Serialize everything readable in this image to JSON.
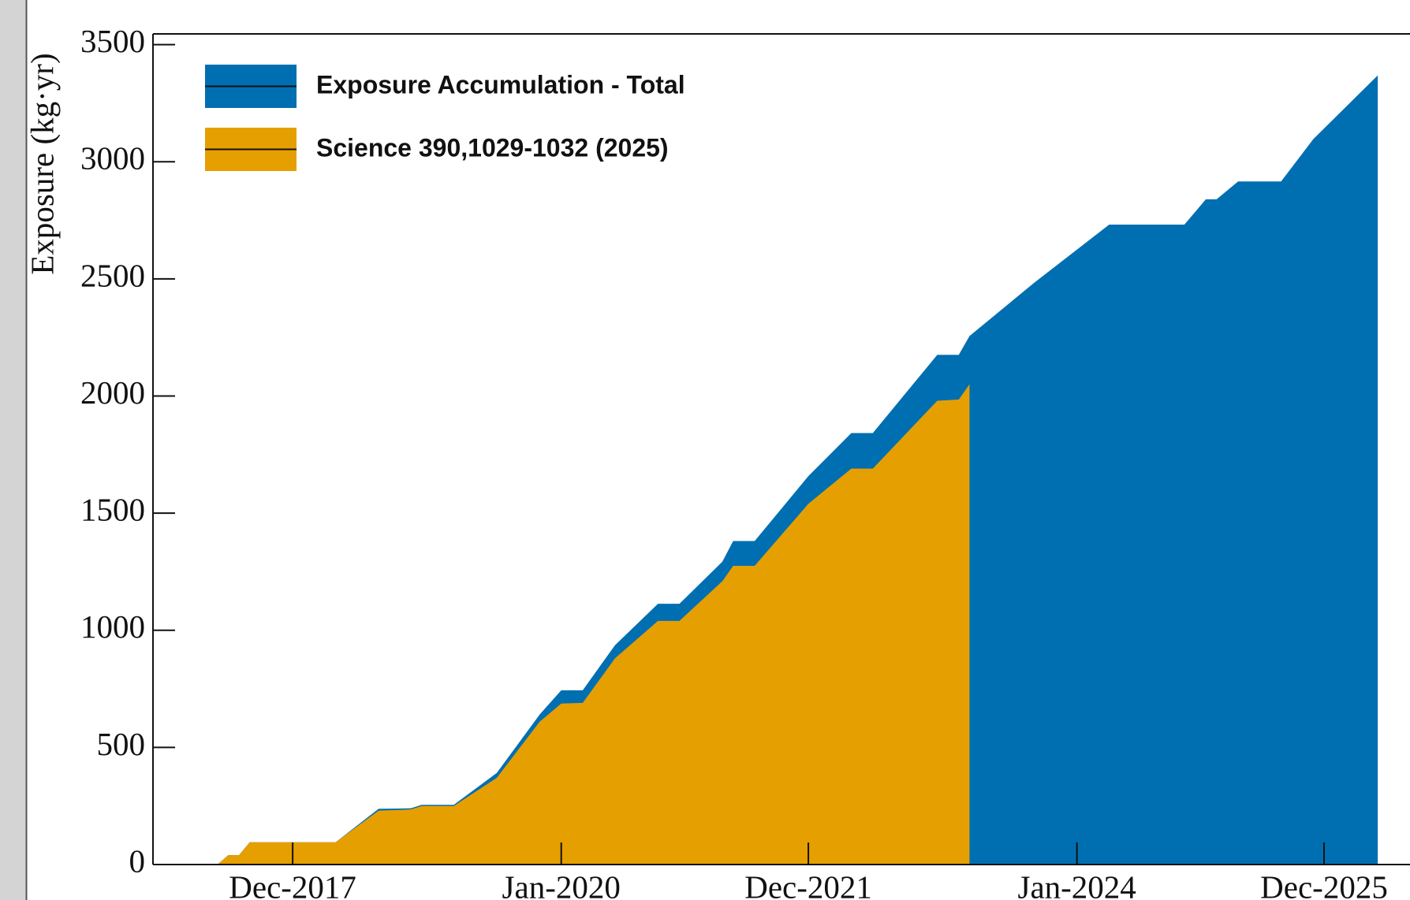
{
  "chart_data": {
    "type": "area",
    "ylabel": "Exposure (kg·yr)",
    "x": [
      "2017-05",
      "2017-06",
      "2017-07",
      "2017-08",
      "2018-04",
      "2018-08",
      "2018-11",
      "2018-12",
      "2019-03",
      "2019-07",
      "2019-11",
      "2020-01",
      "2020-03",
      "2020-06",
      "2020-10",
      "2020-12",
      "2021-04",
      "2021-05",
      "2021-07",
      "2021-12",
      "2022-04",
      "2022-06",
      "2022-12",
      "2023-02",
      "2023-03",
      "2023-09",
      "2024-04",
      "2024-11",
      "2025-01",
      "2025-02",
      "2025-04",
      "2025-08",
      "2025-11",
      "2026-05"
    ],
    "series": [
      {
        "name": "Exposure Accumulation - Total",
        "color": "#006fb1",
        "values": [
          0,
          40,
          40,
          95,
          95,
          238,
          240,
          255,
          255,
          391,
          641,
          744,
          744,
          936,
          1113,
          1113,
          1293,
          1381,
          1381,
          1658,
          1842,
          1842,
          2176,
          2176,
          2256,
          2483,
          2732,
          2732,
          2840,
          2840,
          2916,
          2916,
          3097,
          3369
        ]
      },
      {
        "name": "Science 390,1029-1032 (2025)",
        "color": "#e69f00",
        "values": [
          0,
          40,
          40,
          95,
          95,
          230,
          235,
          250,
          250,
          370,
          610,
          687,
          690,
          880,
          1040,
          1040,
          1210,
          1275,
          1275,
          1540,
          1690,
          1690,
          1980,
          1985,
          2050,
          null,
          null,
          null,
          null,
          null,
          null,
          null,
          null,
          null
        ]
      }
    ],
    "xlim": [
      "2016-11",
      "2026-08"
    ],
    "xticks": [
      {
        "value": "2017-12",
        "label": "Dec-2017"
      },
      {
        "value": "2020-01",
        "label": "Jan-2020"
      },
      {
        "value": "2021-12",
        "label": "Dec-2021"
      },
      {
        "value": "2024-01",
        "label": "Jan-2024"
      },
      {
        "value": "2025-12",
        "label": "Dec-2025"
      }
    ],
    "ylim": [
      0,
      3546
    ],
    "yticks": [
      0,
      500,
      1000,
      1500,
      2000,
      2500,
      3000,
      3500
    ],
    "legend": "upper left"
  }
}
